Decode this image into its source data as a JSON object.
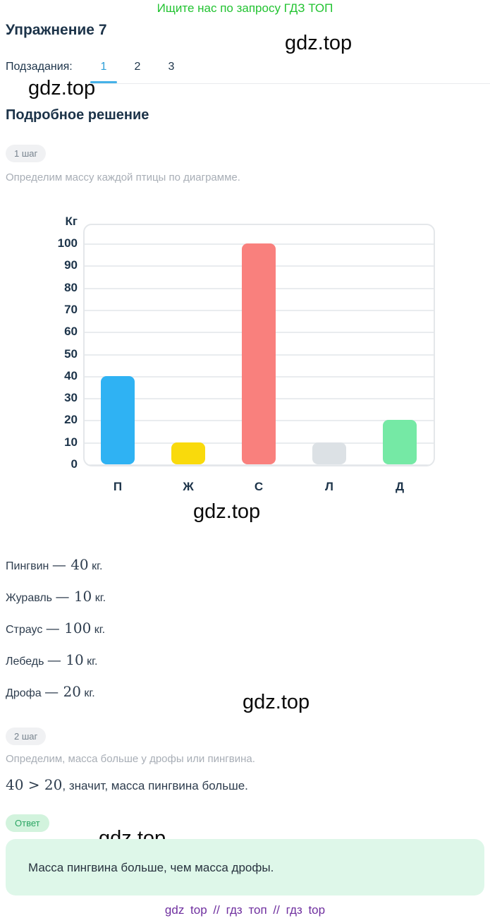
{
  "header": {
    "promo": "Ищите нас по запросу ГДЗ ТОП",
    "title": "Упражнение 7",
    "subtasks_label": "Подзадания:",
    "tabs": [
      {
        "label": "1",
        "active": true
      },
      {
        "label": "2",
        "active": false
      },
      {
        "label": "3",
        "active": false
      }
    ]
  },
  "watermark": {
    "text": "gdz.top"
  },
  "solution": {
    "heading": "Подробное решение",
    "step1_badge": "1 шаг",
    "step1_text": "Определим массу каждой птицы по диаграмме.",
    "dash": "—",
    "mass_suffix": "кг.",
    "masses": [
      {
        "name": "Пингвин",
        "value": "40"
      },
      {
        "name": "Журавль",
        "value": "10"
      },
      {
        "name": "Страус",
        "value": "100"
      },
      {
        "name": "Лебедь",
        "value": "10"
      },
      {
        "name": "Дрофа",
        "value": "20"
      }
    ],
    "step2_badge": "2 шаг",
    "step2_text": "Определим, масса больше у дрофы или пингвина.",
    "conclusion_math": "40 > 20",
    "conclusion_text": ", значит, масса пингвина больше."
  },
  "answer": {
    "badge": "Ответ",
    "text": "Масса пингвина больше, чем масса дрофы."
  },
  "footer": {
    "text": "gdz top // гдз топ // гдз top"
  },
  "colors": {
    "promo_green": "#22c331",
    "navy_text": "#1c3349",
    "tab_active_blue": "#2d9fd8",
    "answer_green": "#2ba563",
    "answer_box_bg": "#def7e9",
    "footer_purple": "#6f2f9f"
  },
  "chart_data": {
    "type": "bar",
    "title": "",
    "unit_label": "Кг",
    "categories": [
      "П",
      "Ж",
      "С",
      "Л",
      "Д"
    ],
    "values": [
      40,
      10,
      100,
      10,
      20
    ],
    "colors": [
      "#2fb2f3",
      "#f9da0c",
      "#f9807d",
      "#dce1e5",
      "#75e9a5"
    ],
    "xlabel": "",
    "ylabel": "Кг",
    "ylim": [
      0,
      100
    ],
    "ytick_step": 10,
    "grid": true,
    "legend": "none"
  }
}
